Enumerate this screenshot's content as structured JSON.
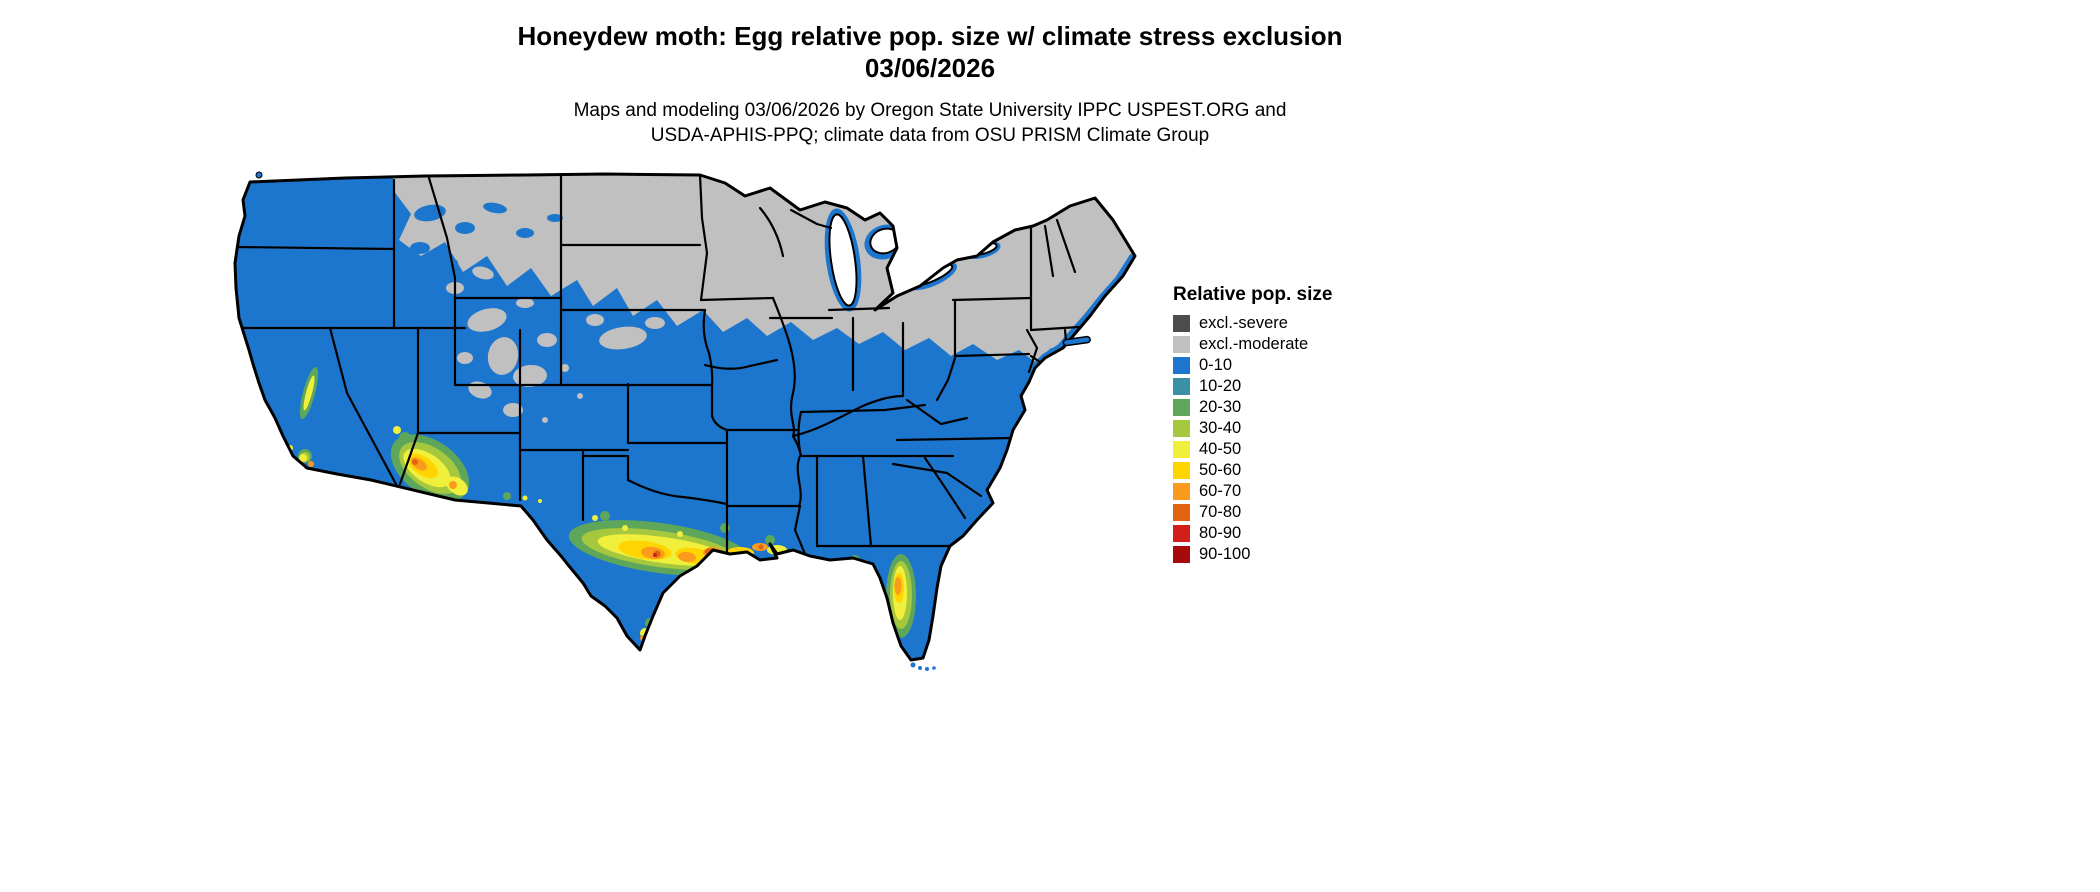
{
  "header": {
    "title_line1": "Honeydew moth: Egg relative pop. size w/ climate stress exclusion",
    "title_line2": "03/06/2026",
    "subtitle_line1": "Maps and modeling 03/06/2026 by Oregon State University IPPC USPEST.ORG and",
    "subtitle_line2": "USDA-APHIS-PPQ; climate data from OSU PRISM Climate Group"
  },
  "legend": {
    "title": "Relative pop. size",
    "items": [
      {
        "label": "excl.-severe",
        "color": "#4d4d4d"
      },
      {
        "label": "excl.-moderate",
        "color": "#c0c0c0"
      },
      {
        "label": "0-10",
        "color": "#1d76cd"
      },
      {
        "label": "10-20",
        "color": "#3b90a5"
      },
      {
        "label": "20-30",
        "color": "#5ea75a"
      },
      {
        "label": "30-40",
        "color": "#a6c83e"
      },
      {
        "label": "40-50",
        "color": "#f0f03c"
      },
      {
        "label": "50-60",
        "color": "#ffd400"
      },
      {
        "label": "60-70",
        "color": "#fa9b1e"
      },
      {
        "label": "70-80",
        "color": "#e2640e"
      },
      {
        "label": "80-90",
        "color": "#d31f1a"
      },
      {
        "label": "90-100",
        "color": "#a60a0a"
      }
    ]
  },
  "map": {
    "type": "choropleth",
    "extent": "Contiguous United States",
    "regions_summary": [
      {
        "region": "Northern tier: eastern Montana, Dakotas, Minnesota, Wisconsin, Michigan, interior Northeast and New England",
        "class": "excl.-moderate"
      },
      {
        "region": "Most of the western, central and southeastern U.S.",
        "class": "0-10"
      },
      {
        "region": "Southern Arizona and coastal southern California",
        "class": "30-70 hotspot"
      },
      {
        "region": "South-central Texas Gulf Coast through Louisiana/Mississippi coast",
        "class": "40-100 hotspot"
      },
      {
        "region": "Central Florida peninsula",
        "class": "40-70 hotspot"
      }
    ]
  }
}
